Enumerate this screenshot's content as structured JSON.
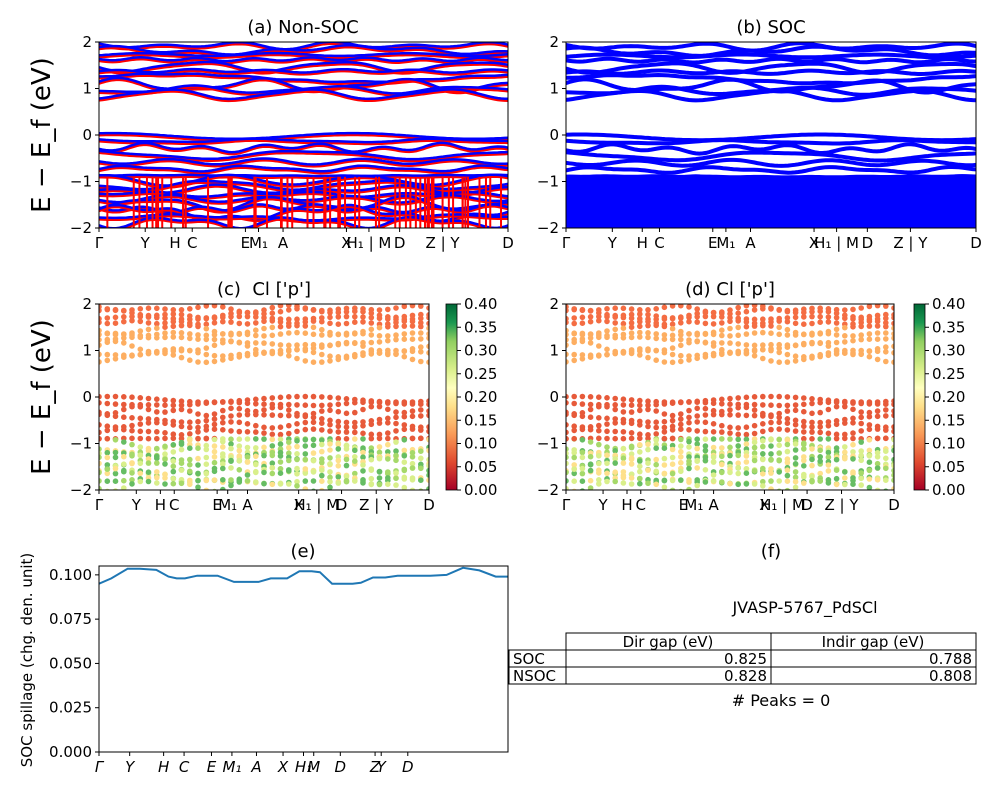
{
  "chart_data": [
    {
      "type": "line",
      "id": "a",
      "title": "(a) Non-SOC",
      "ylabel": "E − E_f (eV)",
      "ylim": [
        -2,
        2
      ],
      "yticks": [
        "−2",
        "−1",
        "0",
        "1",
        "2"
      ],
      "xticks": [
        "Γ",
        "Y",
        "H",
        "C",
        "E",
        "M₁",
        "A",
        "X",
        "H₁ | M",
        "D",
        "Z | Y",
        "D"
      ],
      "series": [
        {
          "name": "spin-up",
          "color": "#ff0000"
        },
        {
          "name": "spin-down",
          "color": "#0000ff"
        }
      ]
    },
    {
      "type": "line",
      "id": "b",
      "title": "(b) SOC",
      "ylim": [
        -2,
        2
      ],
      "yticks": [
        "−2",
        "−1",
        "0",
        "1",
        "2"
      ],
      "xticks": [
        "Γ",
        "Y",
        "H",
        "C",
        "E",
        "M₁",
        "A",
        "X",
        "H₁ | M",
        "D",
        "Z | Y",
        "D"
      ],
      "series": [
        {
          "name": "SOC bands",
          "color": "#0000ff"
        }
      ]
    },
    {
      "type": "scatter",
      "id": "c",
      "title": "(c)  Cl ['p']",
      "ylabel": "E − E_f (eV)",
      "ylim": [
        -2,
        2
      ],
      "yticks": [
        "−2",
        "−1",
        "0",
        "1",
        "2"
      ],
      "xticks": [
        "Γ",
        "Y",
        "H",
        "C",
        "E",
        "M₁",
        "A",
        "X",
        "H₁ | M",
        "D",
        "Z | Y",
        "D"
      ],
      "colorbar": {
        "min": 0.0,
        "max": 0.4,
        "ticks": [
          "0.00",
          "0.05",
          "0.10",
          "0.15",
          "0.20",
          "0.25",
          "0.30",
          "0.35",
          "0.40"
        ],
        "colormap": "RdYlGn"
      }
    },
    {
      "type": "scatter",
      "id": "d",
      "title": "(d) Cl ['p']",
      "ylim": [
        -2,
        2
      ],
      "yticks": [
        "−2",
        "−1",
        "0",
        "1",
        "2"
      ],
      "xticks": [
        "Γ",
        "Y",
        "H",
        "C",
        "E",
        "M₁",
        "A",
        "X",
        "H₁ | M",
        "D",
        "Z | Y",
        "D"
      ],
      "colorbar": {
        "min": 0.0,
        "max": 0.4,
        "ticks": [
          "0.00",
          "0.05",
          "0.10",
          "0.15",
          "0.20",
          "0.25",
          "0.30",
          "0.35",
          "0.40"
        ],
        "colormap": "RdYlGn"
      }
    },
    {
      "type": "line",
      "id": "e",
      "title": "(e)",
      "ylabel": "SOC spillage (chg. den. unit)",
      "ylim": [
        0.0,
        0.105
      ],
      "yticks": [
        "0.000",
        "0.025",
        "0.050",
        "0.075",
        "0.100"
      ],
      "xticks": [
        "Γ",
        "Y",
        "H",
        "C",
        "E",
        "M₁",
        "A",
        "X",
        "H₁",
        "M",
        "D",
        "Z",
        "Y",
        "D"
      ],
      "series": [
        {
          "name": "spillage",
          "color": "#1f77b4",
          "x": [
            0,
            0.03,
            0.07,
            0.1,
            0.14,
            0.17,
            0.19,
            0.21,
            0.24,
            0.26,
            0.29,
            0.33,
            0.36,
            0.39,
            0.42,
            0.46,
            0.49,
            0.52,
            0.54,
            0.57,
            0.59,
            0.62,
            0.64,
            0.67,
            0.7,
            0.73,
            0.77,
            0.81,
            0.85,
            0.89,
            0.93,
            0.97,
            1.0
          ],
          "y": [
            0.095,
            0.098,
            0.1035,
            0.1035,
            0.1028,
            0.099,
            0.098,
            0.098,
            0.0995,
            0.0995,
            0.0995,
            0.096,
            0.096,
            0.096,
            0.098,
            0.098,
            0.102,
            0.102,
            0.1015,
            0.095,
            0.095,
            0.095,
            0.0955,
            0.0985,
            0.0985,
            0.0995,
            0.0995,
            0.0995,
            0.1,
            0.104,
            0.1025,
            0.099,
            0.099
          ]
        }
      ]
    }
  ],
  "table_panel": {
    "title": "(f)",
    "material": "JVASP-5767_PdSCl",
    "columns": [
      "",
      "Dir gap (eV)",
      "Indir gap (eV)"
    ],
    "rows": [
      [
        "SOC",
        "0.825",
        "0.788"
      ],
      [
        "NSOC",
        "0.828",
        "0.808"
      ]
    ],
    "footer": "# Peaks = 0"
  }
}
